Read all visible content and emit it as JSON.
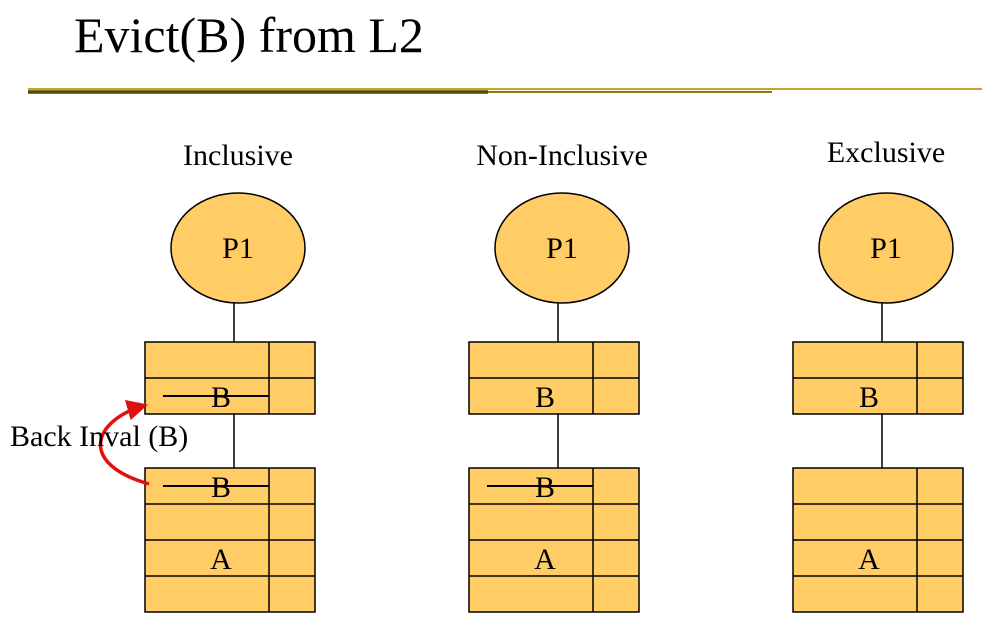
{
  "slide": {
    "title": "Evict(B) from L2",
    "colors": {
      "fill": "#FFCC66",
      "stroke": "#000000",
      "rule_dark": "#4D4D00",
      "rule_light": "#C9A227",
      "arrow": "#E01010"
    }
  },
  "columns": [
    {
      "title": "Inclusive",
      "processor": "P1",
      "l1": [
        {
          "label": "",
          "crossed": false
        },
        {
          "label": "B",
          "crossed": true
        }
      ],
      "l2": [
        {
          "label": "B",
          "crossed": true
        },
        {
          "label": "",
          "crossed": false
        },
        {
          "label": "A",
          "crossed": false
        },
        {
          "label": "",
          "crossed": false
        }
      ]
    },
    {
      "title": "Non-Inclusive",
      "processor": "P1",
      "l1": [
        {
          "label": "",
          "crossed": false
        },
        {
          "label": "B",
          "crossed": false
        }
      ],
      "l2": [
        {
          "label": "B",
          "crossed": true
        },
        {
          "label": "",
          "crossed": false
        },
        {
          "label": "A",
          "crossed": false
        },
        {
          "label": "",
          "crossed": false
        }
      ]
    },
    {
      "title": "Exclusive",
      "processor": "P1",
      "l1": [
        {
          "label": "",
          "crossed": false
        },
        {
          "label": "B",
          "crossed": false
        }
      ],
      "l2": [
        {
          "label": "",
          "crossed": false
        },
        {
          "label": "",
          "crossed": false
        },
        {
          "label": "A",
          "crossed": false
        },
        {
          "label": "",
          "crossed": false
        }
      ]
    }
  ],
  "annotation": {
    "text": "Back Inval (B)",
    "icon": "curved-red-arrow"
  }
}
